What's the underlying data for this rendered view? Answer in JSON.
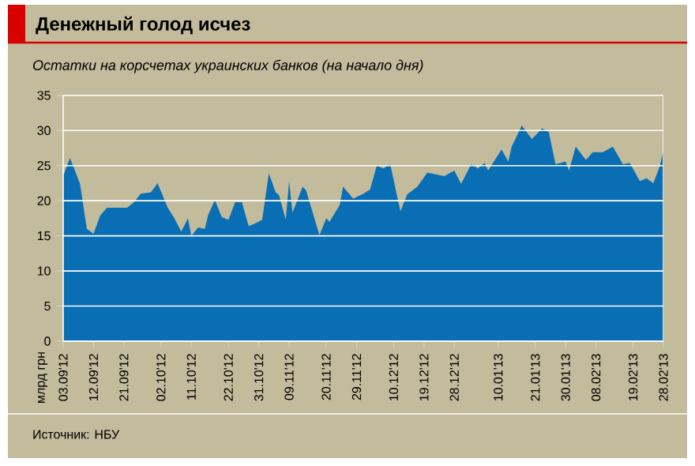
{
  "chart_data": {
    "type": "area",
    "title": "Денежный голод исчез",
    "subtitle": "Остатки на корсчетах украинских банков (на начало дня)",
    "ylabel": "млрд грн",
    "annotations": [
      "Источник: НБУ"
    ],
    "x": [
      "2012-09-03",
      "2012-09-05",
      "2012-09-08",
      "2012-09-10",
      "2012-09-12",
      "2012-09-14",
      "2012-09-16",
      "2012-09-22",
      "2012-09-24",
      "2012-09-26",
      "2012-09-29",
      "2012-10-01",
      "2012-10-04",
      "2012-10-06",
      "2012-10-08",
      "2012-10-10",
      "2012-10-11",
      "2012-10-13",
      "2012-10-15",
      "2012-10-16",
      "2012-10-18",
      "2012-10-20",
      "2012-10-22",
      "2012-10-24",
      "2012-10-26",
      "2012-10-28",
      "2012-10-30",
      "2012-11-01",
      "2012-11-03",
      "2012-11-05",
      "2012-11-06",
      "2012-11-08",
      "2012-11-09",
      "2012-11-10",
      "2012-11-13",
      "2012-11-14",
      "2012-11-16",
      "2012-11-18",
      "2012-11-20",
      "2012-11-21",
      "2012-11-24",
      "2012-11-25",
      "2012-11-28",
      "2012-12-01",
      "2012-12-03",
      "2012-12-05",
      "2012-12-07",
      "2012-12-09",
      "2012-12-12",
      "2012-12-14",
      "2012-12-17",
      "2012-12-20",
      "2012-12-25",
      "2012-12-28",
      "2012-12-30",
      "2013-01-02",
      "2013-01-04",
      "2013-01-06",
      "2013-01-07",
      "2013-01-11",
      "2013-01-13",
      "2013-01-14",
      "2013-01-17",
      "2013-01-20",
      "2013-01-23",
      "2013-01-25",
      "2013-01-27",
      "2013-01-30",
      "2013-01-31",
      "2013-02-02",
      "2013-02-05",
      "2013-02-07",
      "2013-02-10",
      "2013-02-13",
      "2013-02-16",
      "2013-02-18",
      "2013-02-21",
      "2013-02-23",
      "2013-02-25",
      "2013-02-27",
      "2013-02-28"
    ],
    "values": [
      23.5,
      26.1,
      22.4,
      16.0,
      15.3,
      17.9,
      19.0,
      19.0,
      19.8,
      21.0,
      21.2,
      22.5,
      19.0,
      17.5,
      15.6,
      17.5,
      15.0,
      16.2,
      16.0,
      18.0,
      20.1,
      17.7,
      17.3,
      19.8,
      19.8,
      16.4,
      16.8,
      17.3,
      23.9,
      21.2,
      20.8,
      17.3,
      22.8,
      18.3,
      22.0,
      21.5,
      18.3,
      15.1,
      17.5,
      17.0,
      19.4,
      22.0,
      20.3,
      21.0,
      21.6,
      25.0,
      24.6,
      25.2,
      18.5,
      20.9,
      22.0,
      24.0,
      23.5,
      24.3,
      22.4,
      25.2,
      24.6,
      25.4,
      24.3,
      27.3,
      25.6,
      27.7,
      30.7,
      28.8,
      30.3,
      29.8,
      25.2,
      25.6,
      24.3,
      27.7,
      25.8,
      26.9,
      26.9,
      27.7,
      25.2,
      25.4,
      22.8,
      23.2,
      22.5,
      25.0,
      27.3
    ],
    "color": "#0a6eb4",
    "xlim": [
      "2012-09-03",
      "2013-02-28"
    ],
    "xticks": [
      {
        "value": "2012-09-03",
        "label": "03.09'12"
      },
      {
        "value": "2012-09-12",
        "label": "12.09'12"
      },
      {
        "value": "2012-09-21",
        "label": "21.09'12"
      },
      {
        "value": "2012-10-02",
        "label": "02.10'12"
      },
      {
        "value": "2012-10-11",
        "label": "11.10'12"
      },
      {
        "value": "2012-10-22",
        "label": "22.10'12"
      },
      {
        "value": "2012-10-31",
        "label": "31.10'12"
      },
      {
        "value": "2012-11-09",
        "label": "09.11'12"
      },
      {
        "value": "2012-11-20",
        "label": "20.11'12"
      },
      {
        "value": "2012-11-29",
        "label": "29.11'12"
      },
      {
        "value": "2012-12-10",
        "label": "10.12'12"
      },
      {
        "value": "2012-12-19",
        "label": "19.12'12"
      },
      {
        "value": "2012-12-28",
        "label": "28.12'12"
      },
      {
        "value": "2013-01-10",
        "label": "10.01'13"
      },
      {
        "value": "2013-01-21",
        "label": "21.01'13"
      },
      {
        "value": "2013-01-30",
        "label": "30.01'13"
      },
      {
        "value": "2013-02-08",
        "label": "08.02'13"
      },
      {
        "value": "2013-02-19",
        "label": "19.02'13"
      },
      {
        "value": "2013-02-28",
        "label": "28.02'13"
      }
    ],
    "ylim": [
      0,
      35
    ],
    "yticks": [
      0,
      5,
      10,
      15,
      20,
      25,
      30,
      35
    ],
    "grid": "y"
  }
}
